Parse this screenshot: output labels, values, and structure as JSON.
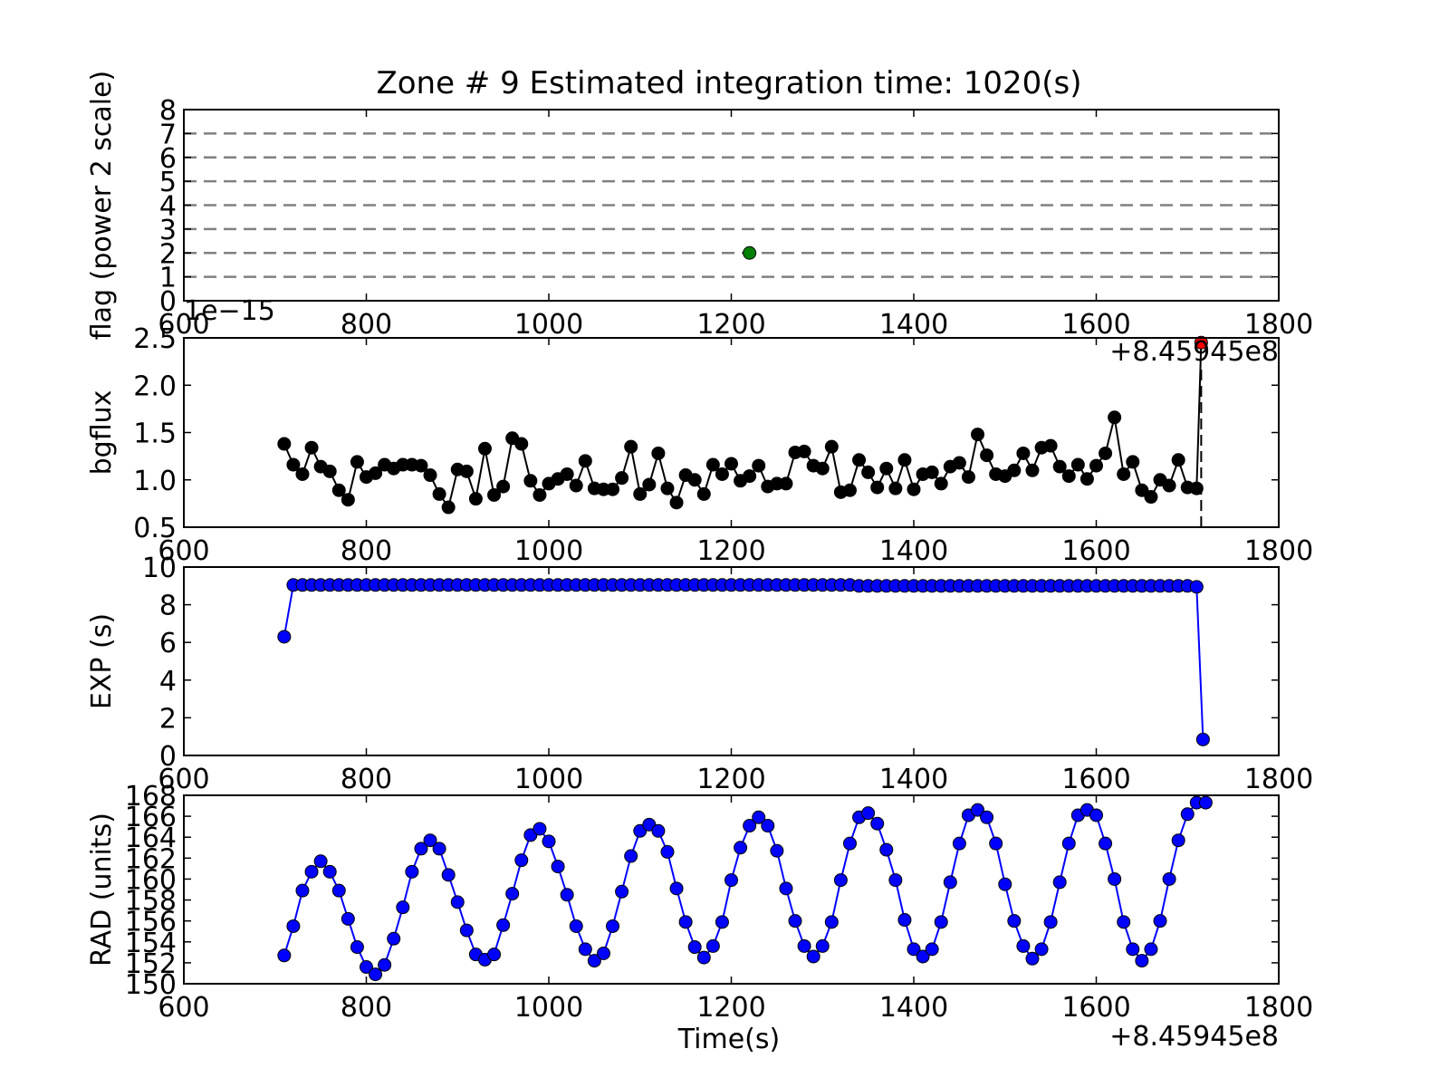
{
  "figure": {
    "title": "Zone # 9 Estimated integration time: 1020(s)",
    "xlabel": "Time(s)",
    "x_offset_label": "+8.45945e8"
  },
  "chart_data": [
    {
      "id": "flag",
      "type": "scatter",
      "ylabel": "flag (power 2 scale)",
      "xlim": [
        600,
        1800
      ],
      "ylim": [
        0,
        8
      ],
      "xticks": [
        "600",
        "800",
        "1000",
        "1200",
        "1400",
        "1600",
        "1800"
      ],
      "yticks": [
        "0",
        "1",
        "2",
        "3",
        "4",
        "5",
        "6",
        "7",
        "8"
      ],
      "hlines": [
        1,
        2,
        3,
        4,
        5,
        6,
        7
      ],
      "hline_color": "#808080",
      "points": [
        {
          "x": 1220,
          "y": 2,
          "color": "#008000"
        }
      ]
    },
    {
      "id": "bgflux",
      "type": "line",
      "ylabel": "bgflux",
      "scale_label": "1e−15",
      "offset_label": "+8.45945e8",
      "xlim": [
        600,
        1800
      ],
      "ylim": [
        0.5,
        2.5
      ],
      "xticks": [
        "600",
        "800",
        "1000",
        "1200",
        "1400",
        "1600",
        "1800"
      ],
      "yticks": [
        "0.5",
        "1.0",
        "1.5",
        "2.0",
        "2.5"
      ],
      "color": "#000000",
      "x0": 710,
      "dx": 10,
      "y": [
        1.38,
        1.16,
        1.06,
        1.34,
        1.14,
        1.09,
        0.89,
        0.79,
        1.19,
        1.03,
        1.07,
        1.16,
        1.12,
        1.16,
        1.16,
        1.15,
        1.05,
        0.85,
        0.71,
        1.11,
        1.09,
        0.8,
        1.33,
        0.84,
        0.93,
        1.44,
        1.38,
        0.99,
        0.84,
        0.96,
        1.01,
        1.06,
        0.94,
        1.2,
        0.91,
        0.9,
        0.9,
        1.02,
        1.35,
        0.85,
        0.95,
        1.28,
        0.91,
        0.76,
        1.05,
        1.0,
        0.85,
        1.16,
        1.06,
        1.17,
        0.99,
        1.04,
        1.15,
        0.93,
        0.96,
        0.96,
        1.29,
        1.3,
        1.15,
        1.12,
        1.35,
        0.87,
        0.89,
        1.21,
        1.08,
        0.92,
        1.12,
        0.91,
        1.21,
        0.9,
        1.06,
        1.08,
        0.96,
        1.14,
        1.18,
        1.03,
        1.48,
        1.26,
        1.06,
        1.04,
        1.1,
        1.28,
        1.1,
        1.34,
        1.36,
        1.14,
        1.04,
        1.16,
        1.01,
        1.15,
        1.28,
        1.66,
        1.06,
        1.19,
        0.89,
        0.82,
        1.0,
        0.94,
        1.21,
        0.92,
        0.91
      ],
      "last_point": {
        "x": 1715,
        "y": 2.45,
        "color": "#ff0000"
      },
      "vline": {
        "x": 1715,
        "from": 0.5,
        "to": 2.2,
        "style": "dashed"
      }
    },
    {
      "id": "exp",
      "type": "line",
      "ylabel": "EXP (s)",
      "xlim": [
        600,
        1800
      ],
      "ylim": [
        0,
        10
      ],
      "xticks": [
        "600",
        "800",
        "1000",
        "1200",
        "1400",
        "1600",
        "1800"
      ],
      "yticks": [
        "0",
        "2",
        "4",
        "6",
        "8",
        "10"
      ],
      "color": "#0000ff",
      "x0": 710,
      "dx": 10,
      "y": [
        6.3,
        9.05,
        9.05,
        9.05,
        9.05,
        9.05,
        9.05,
        9.05,
        9.05,
        9.05,
        9.05,
        9.05,
        9.05,
        9.05,
        9.05,
        9.05,
        9.05,
        9.05,
        9.05,
        9.05,
        9.05,
        9.05,
        9.05,
        9.05,
        9.05,
        9.05,
        9.05,
        9.05,
        9.05,
        9.05,
        9.05,
        9.05,
        9.05,
        9.05,
        9.05,
        9.05,
        9.05,
        9.05,
        9.05,
        9.05,
        9.05,
        9.05,
        9.05,
        9.05,
        9.05,
        9.05,
        9.05,
        9.05,
        9.05,
        9.05,
        9.05,
        9.05,
        9.05,
        9.05,
        9.05,
        9.05,
        9.05,
        9.05,
        9.05,
        9.05,
        9.05,
        9.05,
        9.05,
        9.0,
        9.0,
        9.0,
        9.0,
        9.0,
        9.0,
        9.0,
        9.0,
        9.0,
        9.0,
        9.0,
        9.0,
        9.0,
        9.0,
        9.0,
        9.0,
        9.0,
        9.0,
        9.0,
        9.0,
        9.0,
        9.0,
        9.0,
        9.0,
        9.0,
        9.0,
        9.0,
        9.0,
        9.0,
        9.0,
        9.0,
        9.0,
        9.0,
        9.0,
        9.0,
        9.0,
        9.0,
        8.95
      ],
      "last_point": {
        "x": 1717,
        "y": 0.85
      }
    },
    {
      "id": "rad",
      "type": "line",
      "ylabel": "RAD (units)",
      "xlim": [
        600,
        1800
      ],
      "ylim": [
        150,
        168
      ],
      "xticks": [
        "600",
        "800",
        "1000",
        "1200",
        "1400",
        "1600",
        "1800"
      ],
      "yticks": [
        "150",
        "152",
        "154",
        "156",
        "158",
        "160",
        "162",
        "164",
        "166",
        "168"
      ],
      "color": "#0000ff",
      "x0": 710,
      "dx": 10,
      "y": [
        152.7,
        155.5,
        158.9,
        160.7,
        161.7,
        160.7,
        158.9,
        156.2,
        153.5,
        151.6,
        150.9,
        151.8,
        154.3,
        157.3,
        160.7,
        162.9,
        163.7,
        162.9,
        160.4,
        157.8,
        155.1,
        152.8,
        152.3,
        152.8,
        155.6,
        158.6,
        161.8,
        164.2,
        164.8,
        163.6,
        161.2,
        158.5,
        155.5,
        153.3,
        152.2,
        152.9,
        155.5,
        158.8,
        162.2,
        164.6,
        165.2,
        164.6,
        162.6,
        159.1,
        155.9,
        153.5,
        152.5,
        153.6,
        155.9,
        159.9,
        163.0,
        165.1,
        165.9,
        165.1,
        162.7,
        159.1,
        156.0,
        153.6,
        152.6,
        153.6,
        155.9,
        159.9,
        163.4,
        165.9,
        166.3,
        165.3,
        162.8,
        159.9,
        156.1,
        153.3,
        152.6,
        153.3,
        155.9,
        159.7,
        163.4,
        166.1,
        166.6,
        165.9,
        163.4,
        159.5,
        156.0,
        153.6,
        152.4,
        153.3,
        155.9,
        159.7,
        163.4,
        166.1,
        166.6,
        166.1,
        163.4,
        160.0,
        155.9,
        153.3,
        152.2,
        153.3,
        156.0,
        160.0,
        163.7,
        166.2,
        167.3,
        167.3
      ]
    }
  ]
}
